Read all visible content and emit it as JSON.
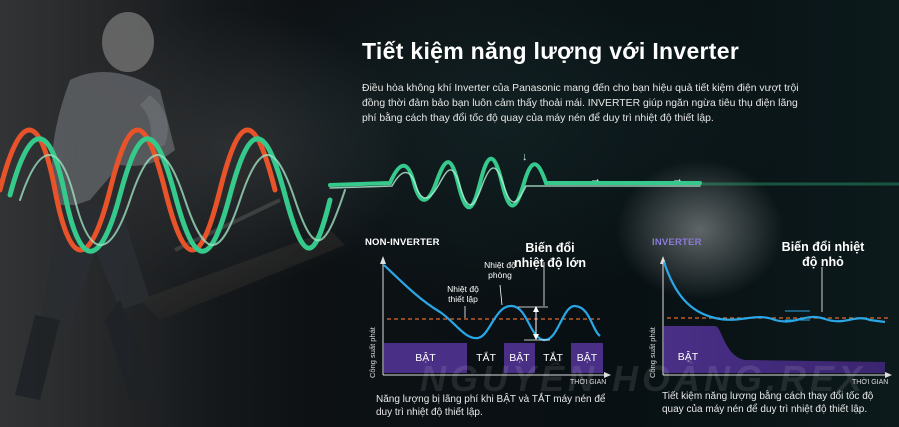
{
  "header": {
    "title": "Tiết kiệm năng lượng với Inverter",
    "description": "Điều hòa không khí Inverter của Panasonic mang đến cho bạn hiệu quả tiết kiệm điện vượt trội đồng thời đảm bảo bạn luôn cảm thấy thoải mái. INVERTER giúp ngăn ngừa tiêu thụ điện lãng phí bằng cách thay đổi tốc độ quay của máy nén để duy trì nhiệt độ thiết lập."
  },
  "non_inverter": {
    "heading": "NON-INVERTER",
    "variation_note": "Biến đổi nhiệt độ lớn",
    "room_temp_label": "Nhiệt độ phòng",
    "set_temp_label": "Nhiệt độ thiết lập",
    "y_axis_label": "Công suất phát",
    "x_axis_label": "THỜI GIAN",
    "states": [
      "BẬT",
      "TẮT",
      "BẬT",
      "TẮT",
      "BẬT"
    ],
    "caption": "Năng lượng bị lãng phí khi BẬT và TẮT máy nén để duy trì nhiệt độ thiết lập."
  },
  "inverter": {
    "heading": "INVERTER",
    "variation_note": "Biến đổi nhiệt độ nhỏ",
    "y_axis_label": "Công suất phát",
    "x_axis_label": "THỜI GIAN",
    "state": "BẬT",
    "caption": "Tiết kiệm năng lượng bằng cách thay đổi tốc độ quay của máy nén để duy trì nhiệt độ thiết lập."
  },
  "watermark": "NGUYỄN HOÀNG.REX",
  "colors": {
    "wave_orange": "#e8532a",
    "wave_green": "#35c98c",
    "temp_curve": "#2aa7e6",
    "set_line": "#e06a2c",
    "power_bar": "#4a2f86",
    "inverter_heading": "#8a7ad8"
  }
}
